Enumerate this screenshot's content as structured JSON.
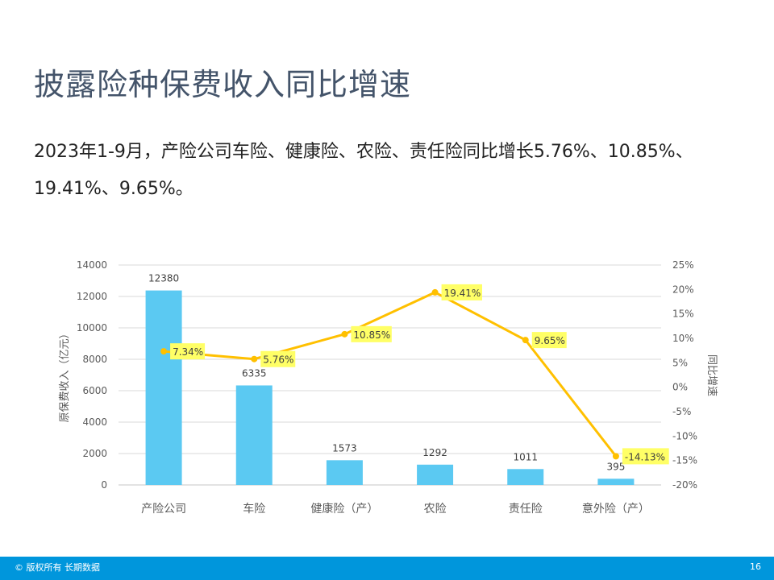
{
  "slide": {
    "title": "披露险种保费收入同比增速",
    "subtitle": "2023年1-9月，产险公司车险、健康险、农险、责任险同比增长5.76%、10.85%、19.41%、9.65%。",
    "footer_copyright": "© 版权所有 长期数据",
    "page_number": "16"
  },
  "colors": {
    "bar": "#5bc9f2",
    "line": "#ffc000",
    "label_bg": "#ffff66",
    "grid": "#d9d9d9",
    "axis_text": "#595959",
    "title": "#44546a",
    "footer": "#0096dc"
  },
  "chart_data": {
    "type": "bar+line",
    "title": "",
    "categories": [
      "产险公司",
      "车险",
      "健康险（产）",
      "农险",
      "责任险",
      "意外险（产）"
    ],
    "series": [
      {
        "name": "原保费收入（亿元）",
        "type": "bar",
        "axis": "left",
        "values": [
          12380,
          6335,
          1573,
          1292,
          1011,
          395
        ]
      },
      {
        "name": "同比增速",
        "type": "line",
        "axis": "right",
        "values": [
          7.34,
          5.76,
          10.85,
          19.41,
          9.65,
          -14.13
        ],
        "labels": [
          "7.34%",
          "5.76%",
          "10.85%",
          "19.41%",
          "9.65%",
          "-14.13%"
        ]
      }
    ],
    "ylabel": "原保费收入（亿元）",
    "y2label": "同比增速",
    "ylim": [
      0,
      14000
    ],
    "y_ticks": [
      "14000",
      "12000",
      "10000",
      "8000",
      "6000",
      "4000",
      "2000",
      "0"
    ],
    "y2lim": [
      -20,
      25
    ],
    "y2_ticks": [
      "25%",
      "20%",
      "15%",
      "10%",
      "5%",
      "0%",
      "-5%",
      "-10%",
      "-15%",
      "-20%"
    ],
    "grid": true,
    "legend": "none"
  }
}
